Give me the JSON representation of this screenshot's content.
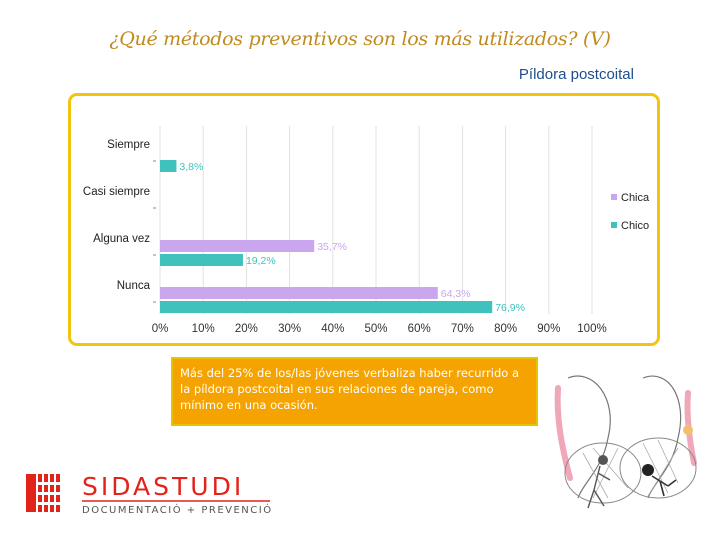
{
  "slide": {
    "title": "¿Qué métodos preventivos son los más utilizados? (V)",
    "subtitle": "Píldora postcoital",
    "note": "Más del 25% de los/las jóvenes verbaliza haber recurrido a la píldora postcoital en sus relaciones de pareja, como mínimo en una ocasión."
  },
  "logo": {
    "name": "SIDASTUDI",
    "tagline": "DOCUMENTACIÓ + PREVENCIÓ",
    "color": "#e2231a"
  },
  "chart_data": {
    "type": "bar",
    "orientation": "horizontal",
    "categories": [
      "Siempre",
      "Casi siempre",
      "Alguna vez",
      "Nunca"
    ],
    "series": [
      {
        "name": "Chica",
        "color": "#c9a6ee",
        "values": [
          null,
          null,
          35.7,
          64.3
        ],
        "labels": [
          "",
          "",
          "35,7%",
          "64,3%"
        ]
      },
      {
        "name": "Chico",
        "color": "#3fc1bd",
        "values": [
          3.8,
          null,
          19.2,
          76.9
        ],
        "labels": [
          "3,8%",
          "",
          "19,2%",
          "76,9%"
        ]
      }
    ],
    "x_ticks": [
      "0%",
      "10%",
      "20%",
      "30%",
      "40%",
      "50%",
      "60%",
      "70%",
      "80%",
      "90%",
      "100%"
    ],
    "xlim": [
      0,
      100
    ],
    "grid": true,
    "legend": "right"
  },
  "illustration": {
    "icon": "couple-illustration-icon"
  }
}
